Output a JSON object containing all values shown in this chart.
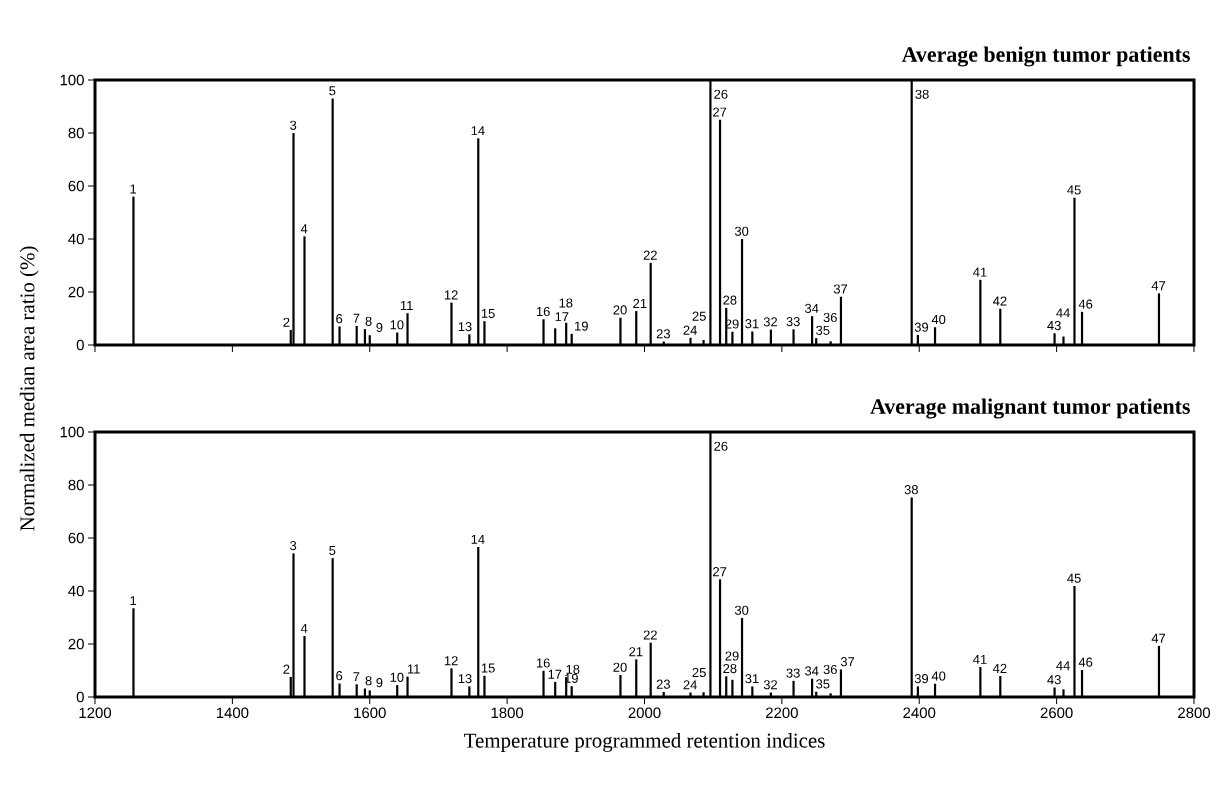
{
  "chart_data": [
    {
      "type": "bar",
      "title": "Average benign tumor patients",
      "ylabel": "Normalized median area ratio (%)",
      "tick_labels": "y",
      "x": [
        1256,
        1485,
        1489,
        1505,
        1546,
        1556,
        1581,
        1593,
        1600,
        1640,
        1655,
        1719,
        1745,
        1758,
        1767,
        1853,
        1870,
        1886,
        1894,
        1965,
        1988,
        2009,
        2028,
        2067,
        2086,
        2096,
        2110,
        2119,
        2128,
        2142,
        2157,
        2184,
        2217,
        2244,
        2250,
        2271,
        2286,
        2389,
        2398,
        2423,
        2489,
        2518,
        2597,
        2610,
        2626,
        2637,
        2749
      ],
      "series": [
        {
          "color": "#000000",
          "values": [
            56,
            5.7,
            80,
            41,
            93,
            7,
            7.2,
            6,
            3.7,
            4.7,
            12,
            16,
            4,
            78,
            9,
            9.7,
            6.3,
            8.4,
            4.2,
            10.3,
            12.8,
            31,
            1.3,
            2.7,
            1.9,
            100,
            85,
            14,
            5,
            40,
            5.1,
            5.8,
            5.9,
            10.9,
            2.6,
            1.4,
            18.2,
            100,
            3.8,
            6.7,
            24.6,
            13.7,
            4.4,
            3.2,
            55.6,
            12.5,
            19.5
          ]
        }
      ],
      "xlim": [
        1200,
        2800
      ],
      "xticks": [
        1200,
        1400,
        1600,
        1800,
        2000,
        2200,
        2400,
        2600,
        2800
      ],
      "ylim": [
        0,
        100
      ],
      "yticks": [
        0,
        20,
        40,
        60,
        80,
        100
      ],
      "annotations": [
        {
          "text": "1",
          "x": 1256,
          "y": 56
        },
        {
          "text": "2",
          "x": 1485,
          "y": 5.7
        },
        {
          "text": "3",
          "x": 1489,
          "y": 80
        },
        {
          "text": "4",
          "x": 1505,
          "y": 41
        },
        {
          "text": "5",
          "x": 1546,
          "y": 93
        },
        {
          "text": "6",
          "x": 1556,
          "y": 7
        },
        {
          "text": "7",
          "x": 1581,
          "y": 7.2
        },
        {
          "text": "8",
          "x": 1593,
          "y": 6
        },
        {
          "text": "9",
          "x": 1600,
          "y": 3.7
        },
        {
          "text": "10",
          "x": 1640,
          "y": 4.7
        },
        {
          "text": "11",
          "x": 1655,
          "y": 12
        },
        {
          "text": "12",
          "x": 1719,
          "y": 16
        },
        {
          "text": "13",
          "x": 1745,
          "y": 4
        },
        {
          "text": "14",
          "x": 1758,
          "y": 78
        },
        {
          "text": "15",
          "x": 1767,
          "y": 9
        },
        {
          "text": "16",
          "x": 1853,
          "y": 9.7
        },
        {
          "text": "17",
          "x": 1870,
          "y": 6.3
        },
        {
          "text": "18",
          "x": 1886,
          "y": 8.4
        },
        {
          "text": "19",
          "x": 1894,
          "y": 4.2
        },
        {
          "text": "20",
          "x": 1965,
          "y": 10.3
        },
        {
          "text": "21",
          "x": 1988,
          "y": 12.8
        },
        {
          "text": "22",
          "x": 2009,
          "y": 31
        },
        {
          "text": "23",
          "x": 2028,
          "y": 1.3
        },
        {
          "text": "24",
          "x": 2067,
          "y": 2.7
        },
        {
          "text": "25",
          "x": 2086,
          "y": 1.9
        },
        {
          "text": "26",
          "x": 2096,
          "y": 100
        },
        {
          "text": "27",
          "x": 2110,
          "y": 85
        },
        {
          "text": "28",
          "x": 2119,
          "y": 14
        },
        {
          "text": "29",
          "x": 2128,
          "y": 5
        },
        {
          "text": "30",
          "x": 2142,
          "y": 40
        },
        {
          "text": "31",
          "x": 2157,
          "y": 5.1
        },
        {
          "text": "32",
          "x": 2184,
          "y": 5.8
        },
        {
          "text": "33",
          "x": 2217,
          "y": 5.9
        },
        {
          "text": "34",
          "x": 2244,
          "y": 10.9
        },
        {
          "text": "35",
          "x": 2250,
          "y": 2.6
        },
        {
          "text": "36",
          "x": 2271,
          "y": 1.4
        },
        {
          "text": "37",
          "x": 2286,
          "y": 18.2
        },
        {
          "text": "38",
          "x": 2389,
          "y": 100
        },
        {
          "text": "39",
          "x": 2398,
          "y": 3.8
        },
        {
          "text": "40",
          "x": 2423,
          "y": 6.7
        },
        {
          "text": "41",
          "x": 2489,
          "y": 24.6
        },
        {
          "text": "42",
          "x": 2518,
          "y": 13.7
        },
        {
          "text": "43",
          "x": 2597,
          "y": 4.4
        },
        {
          "text": "44",
          "x": 2610,
          "y": 3.2
        },
        {
          "text": "45",
          "x": 2626,
          "y": 55.6
        },
        {
          "text": "46",
          "x": 2637,
          "y": 12.5
        },
        {
          "text": "47",
          "x": 2749,
          "y": 19.5
        }
      ]
    },
    {
      "type": "bar",
      "title": "Average malignant tumor patients",
      "xlabel": "Temperature programmed retention indices",
      "x": [
        1256,
        1485,
        1489,
        1505,
        1546,
        1556,
        1581,
        1593,
        1600,
        1640,
        1655,
        1719,
        1745,
        1758,
        1767,
        1853,
        1870,
        1886,
        1894,
        1965,
        1988,
        2009,
        2028,
        2067,
        2086,
        2096,
        2110,
        2119,
        2128,
        2142,
        2157,
        2184,
        2217,
        2244,
        2250,
        2271,
        2286,
        2389,
        2398,
        2423,
        2489,
        2518,
        2597,
        2610,
        2626,
        2637,
        2749
      ],
      "series": [
        {
          "color": "#000000",
          "values": [
            33.5,
            7.6,
            54.2,
            23,
            52.4,
            5.1,
            4.8,
            3.2,
            2.5,
            4.5,
            7.7,
            10.8,
            4,
            56.6,
            8,
            9.9,
            5.7,
            7.5,
            4.1,
            8.3,
            14.2,
            20.5,
            1.9,
            1.7,
            1.8,
            100,
            44.4,
            7.8,
            6.5,
            29.8,
            4,
            1.7,
            6.1,
            6.9,
            2,
            1.4,
            10.4,
            75.3,
            4,
            5,
            11.3,
            7.9,
            3.6,
            2.9,
            41.9,
            10.2,
            19.3
          ]
        }
      ],
      "xlim": [
        1200,
        2800
      ],
      "xticks": [
        1200,
        1400,
        1600,
        1800,
        2000,
        2200,
        2400,
        2600,
        2800
      ],
      "ylim": [
        0,
        100
      ],
      "yticks": [
        0,
        20,
        40,
        60,
        80,
        100
      ],
      "annotations": [
        {
          "text": "1",
          "x": 1256,
          "y": 33.5
        },
        {
          "text": "2",
          "x": 1485,
          "y": 7.6
        },
        {
          "text": "3",
          "x": 1489,
          "y": 54.2
        },
        {
          "text": "4",
          "x": 1505,
          "y": 23
        },
        {
          "text": "5",
          "x": 1546,
          "y": 52.4
        },
        {
          "text": "6",
          "x": 1556,
          "y": 5.1
        },
        {
          "text": "7",
          "x": 1581,
          "y": 4.8
        },
        {
          "text": "8",
          "x": 1593,
          "y": 3.2
        },
        {
          "text": "9",
          "x": 1600,
          "y": 2.5
        },
        {
          "text": "10",
          "x": 1640,
          "y": 4.5
        },
        {
          "text": "11",
          "x": 1655,
          "y": 7.7
        },
        {
          "text": "12",
          "x": 1719,
          "y": 10.8
        },
        {
          "text": "13",
          "x": 1745,
          "y": 4
        },
        {
          "text": "14",
          "x": 1758,
          "y": 56.6
        },
        {
          "text": "15",
          "x": 1767,
          "y": 8
        },
        {
          "text": "16",
          "x": 1853,
          "y": 9.9
        },
        {
          "text": "17",
          "x": 1870,
          "y": 5.7
        },
        {
          "text": "18",
          "x": 1886,
          "y": 7.5
        },
        {
          "text": "19",
          "x": 1894,
          "y": 4.1
        },
        {
          "text": "20",
          "x": 1965,
          "y": 8.3
        },
        {
          "text": "21",
          "x": 1988,
          "y": 14.2
        },
        {
          "text": "22",
          "x": 2009,
          "y": 20.5
        },
        {
          "text": "23",
          "x": 2028,
          "y": 1.9
        },
        {
          "text": "24",
          "x": 2067,
          "y": 1.7
        },
        {
          "text": "25",
          "x": 2086,
          "y": 1.8
        },
        {
          "text": "26",
          "x": 2096,
          "y": 100
        },
        {
          "text": "27",
          "x": 2110,
          "y": 44.4
        },
        {
          "text": "28",
          "x": 2119,
          "y": 7.8
        },
        {
          "text": "29",
          "x": 2128,
          "y": 6.5
        },
        {
          "text": "30",
          "x": 2142,
          "y": 29.8
        },
        {
          "text": "31",
          "x": 2157,
          "y": 4
        },
        {
          "text": "32",
          "x": 2184,
          "y": 1.7
        },
        {
          "text": "33",
          "x": 2217,
          "y": 6.1
        },
        {
          "text": "34",
          "x": 2244,
          "y": 6.9
        },
        {
          "text": "35",
          "x": 2250,
          "y": 2
        },
        {
          "text": "36",
          "x": 2271,
          "y": 1.4
        },
        {
          "text": "37",
          "x": 2286,
          "y": 10.4
        },
        {
          "text": "38",
          "x": 2389,
          "y": 75.3
        },
        {
          "text": "39",
          "x": 2398,
          "y": 4
        },
        {
          "text": "40",
          "x": 2423,
          "y": 5
        },
        {
          "text": "41",
          "x": 2489,
          "y": 11.3
        },
        {
          "text": "42",
          "x": 2518,
          "y": 7.9
        },
        {
          "text": "43",
          "x": 2597,
          "y": 3.6
        },
        {
          "text": "44",
          "x": 2610,
          "y": 2.9
        },
        {
          "text": "45",
          "x": 2626,
          "y": 41.9
        },
        {
          "text": "46",
          "x": 2637,
          "y": 10.2
        },
        {
          "text": "47",
          "x": 2749,
          "y": 19.3
        }
      ]
    }
  ]
}
